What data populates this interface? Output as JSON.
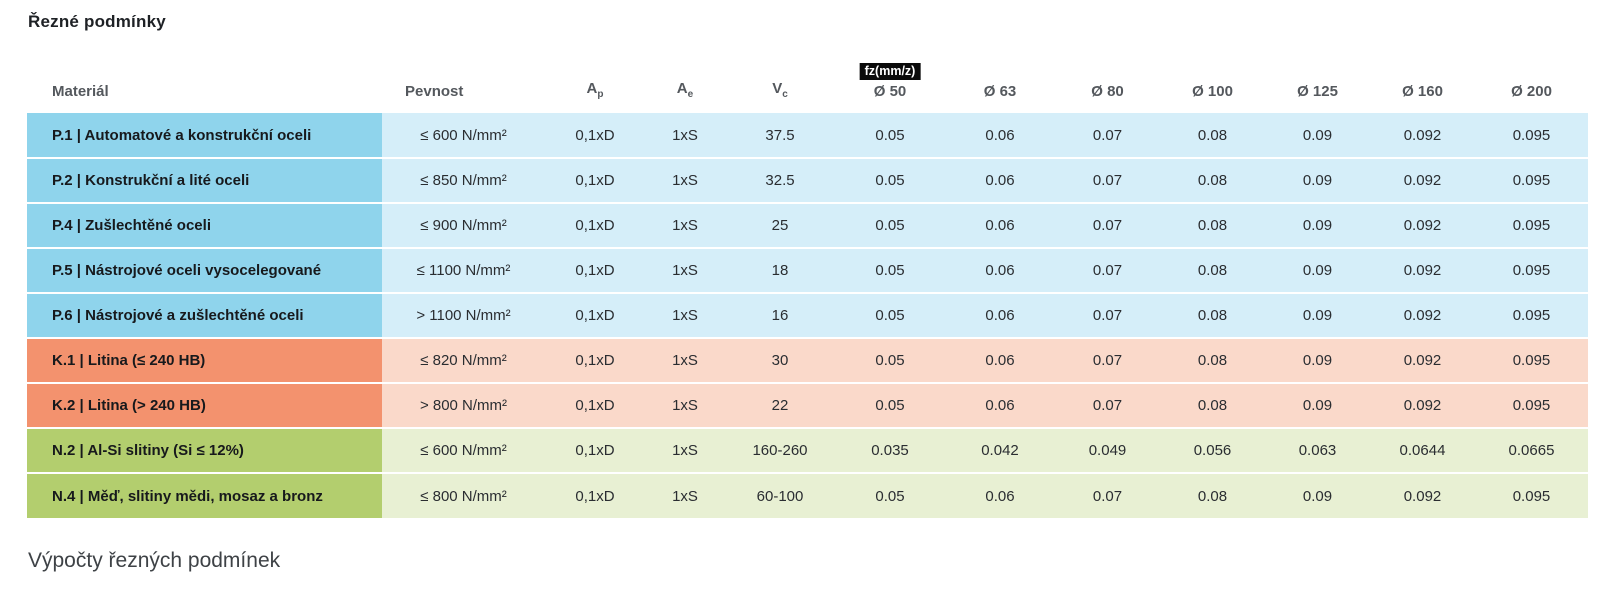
{
  "page": {
    "title": "Řezné podmínky",
    "footer_heading": "Výpočty řezných podmínek"
  },
  "table": {
    "fz_badge": "fz(mm/z)",
    "columns": [
      {
        "label": "Materiál"
      },
      {
        "label": "Pevnost"
      },
      {
        "label": "A",
        "sub": "p"
      },
      {
        "label": "A",
        "sub": "e"
      },
      {
        "label": "V",
        "sub": "c"
      },
      {
        "label": "Ø 50"
      },
      {
        "label": "Ø 63"
      },
      {
        "label": "Ø 80"
      },
      {
        "label": "Ø 100"
      },
      {
        "label": "Ø 125"
      },
      {
        "label": "Ø 160"
      },
      {
        "label": "Ø 200"
      }
    ],
    "rows": [
      {
        "group": "P",
        "material": "P.1 | Automatové a konstrukční oceli",
        "pevnost": "≤ 600 N/mm²",
        "ap": "0,1xD",
        "ae": "1xS",
        "vc": "37.5",
        "fz": [
          "0.05",
          "0.06",
          "0.07",
          "0.08",
          "0.09",
          "0.092",
          "0.095"
        ]
      },
      {
        "group": "P",
        "material": "P.2 | Konstrukční a lité oceli",
        "pevnost": "≤ 850 N/mm²",
        "ap": "0,1xD",
        "ae": "1xS",
        "vc": "32.5",
        "fz": [
          "0.05",
          "0.06",
          "0.07",
          "0.08",
          "0.09",
          "0.092",
          "0.095"
        ]
      },
      {
        "group": "P",
        "material": "P.4 | Zušlechtěné oceli",
        "pevnost": "≤ 900 N/mm²",
        "ap": "0,1xD",
        "ae": "1xS",
        "vc": "25",
        "fz": [
          "0.05",
          "0.06",
          "0.07",
          "0.08",
          "0.09",
          "0.092",
          "0.095"
        ]
      },
      {
        "group": "P",
        "material": "P.5 | Nástrojové oceli vysocelegované",
        "pevnost": "≤ 1100 N/mm²",
        "ap": "0,1xD",
        "ae": "1xS",
        "vc": "18",
        "fz": [
          "0.05",
          "0.06",
          "0.07",
          "0.08",
          "0.09",
          "0.092",
          "0.095"
        ]
      },
      {
        "group": "P",
        "material": "P.6 | Nástrojové a zušlechtěné oceli",
        "pevnost": "> 1100 N/mm²",
        "ap": "0,1xD",
        "ae": "1xS",
        "vc": "16",
        "fz": [
          "0.05",
          "0.06",
          "0.07",
          "0.08",
          "0.09",
          "0.092",
          "0.095"
        ]
      },
      {
        "group": "K",
        "material": "K.1 | Litina (≤ 240 HB)",
        "pevnost": "≤ 820 N/mm²",
        "ap": "0,1xD",
        "ae": "1xS",
        "vc": "30",
        "fz": [
          "0.05",
          "0.06",
          "0.07",
          "0.08",
          "0.09",
          "0.092",
          "0.095"
        ]
      },
      {
        "group": "K",
        "material": "K.2 | Litina (> 240 HB)",
        "pevnost": "> 800 N/mm²",
        "ap": "0,1xD",
        "ae": "1xS",
        "vc": "22",
        "fz": [
          "0.05",
          "0.06",
          "0.07",
          "0.08",
          "0.09",
          "0.092",
          "0.095"
        ]
      },
      {
        "group": "N",
        "material": "N.2 | Al-Si slitiny (Si ≤ 12%)",
        "pevnost": "≤ 600 N/mm²",
        "ap": "0,1xD",
        "ae": "1xS",
        "vc": "160-260",
        "fz": [
          "0.035",
          "0.042",
          "0.049",
          "0.056",
          "0.063",
          "0.0644",
          "0.0665"
        ]
      },
      {
        "group": "N",
        "material": "N.4 | Měď, slitiny mědi, mosaz a bronz",
        "pevnost": "≤ 800 N/mm²",
        "ap": "0,1xD",
        "ae": "1xS",
        "vc": "60-100",
        "fz": [
          "0.05",
          "0.06",
          "0.07",
          "0.08",
          "0.09",
          "0.092",
          "0.095"
        ]
      }
    ],
    "colors": {
      "P": {
        "label": "#8fd4ec",
        "cells": "#d5eef9"
      },
      "K": {
        "label": "#f3926e",
        "cells": "#fad9ca"
      },
      "N": {
        "label": "#b3ce6e",
        "cells": "#e8f0d3"
      }
    }
  }
}
